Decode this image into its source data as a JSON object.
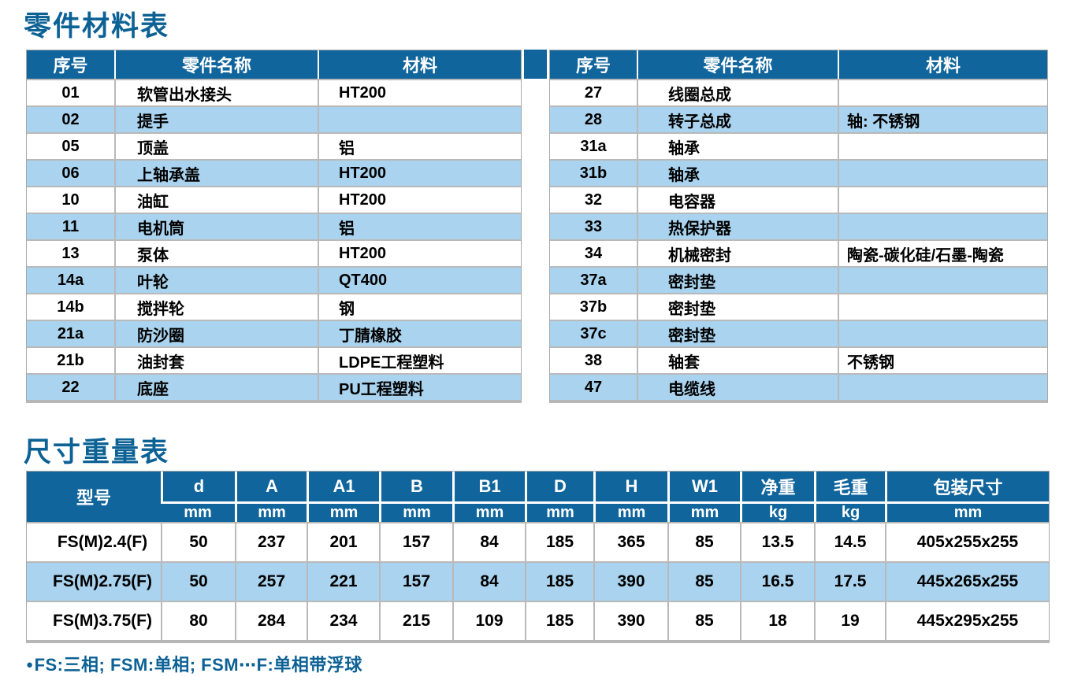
{
  "colors": {
    "header_blue": "#10659c",
    "row_light_blue": "#a9d3ee",
    "border_gray": "#b9b9b9",
    "title_blue": "#0c6195",
    "header_text": "#ffffff",
    "body_text": "#000000"
  },
  "parts_table": {
    "title": "零件材料表",
    "headers": [
      "序号",
      "零件名称",
      "材料"
    ],
    "left_rows": [
      [
        "01",
        "软管出水接头",
        "HT200"
      ],
      [
        "02",
        "提手",
        ""
      ],
      [
        "05",
        "顶盖",
        "铝"
      ],
      [
        "06",
        "上轴承盖",
        "HT200"
      ],
      [
        "10",
        "油缸",
        "HT200"
      ],
      [
        "11",
        "电机筒",
        "铝"
      ],
      [
        "13",
        "泵体",
        "HT200"
      ],
      [
        "14a",
        "叶轮",
        "QT400"
      ],
      [
        "14b",
        "搅拌轮",
        "钢"
      ],
      [
        "21a",
        "防沙圈",
        "丁腈橡胶"
      ],
      [
        "21b",
        "油封套",
        "LDPE工程塑料"
      ],
      [
        "22",
        "底座",
        "PU工程塑料"
      ]
    ],
    "right_rows": [
      [
        "27",
        "线圈总成",
        ""
      ],
      [
        "28",
        "转子总成",
        "轴: 不锈钢"
      ],
      [
        "31a",
        "轴承",
        ""
      ],
      [
        "31b",
        "轴承",
        ""
      ],
      [
        "32",
        "电容器",
        ""
      ],
      [
        "33",
        "热保护器",
        ""
      ],
      [
        "34",
        "机械密封",
        "陶瓷-碳化硅/石墨-陶瓷"
      ],
      [
        "37a",
        "密封垫",
        ""
      ],
      [
        "37b",
        "密封垫",
        ""
      ],
      [
        "37c",
        "密封垫",
        ""
      ],
      [
        "38",
        "轴套",
        "不锈钢"
      ],
      [
        "47",
        "电缆线",
        ""
      ]
    ]
  },
  "dimensions_table": {
    "title": "尺寸重量表",
    "model_header": "型号",
    "columns": [
      {
        "label": "d",
        "unit": "mm"
      },
      {
        "label": "A",
        "unit": "mm"
      },
      {
        "label": "A1",
        "unit": "mm"
      },
      {
        "label": "B",
        "unit": "mm"
      },
      {
        "label": "B1",
        "unit": "mm"
      },
      {
        "label": "D",
        "unit": "mm"
      },
      {
        "label": "H",
        "unit": "mm"
      },
      {
        "label": "W1",
        "unit": "mm"
      },
      {
        "label": "净重",
        "unit": "kg"
      },
      {
        "label": "毛重",
        "unit": "kg"
      },
      {
        "label": "包装尺寸",
        "unit": "mm"
      }
    ],
    "rows": [
      {
        "model": "FS(M)2.4(F)",
        "values": [
          "50",
          "237",
          "201",
          "157",
          "84",
          "185",
          "365",
          "85",
          "13.5",
          "14.5",
          "405x255x255"
        ]
      },
      {
        "model": "FS(M)2.75(F)",
        "values": [
          "50",
          "257",
          "221",
          "157",
          "84",
          "185",
          "390",
          "85",
          "16.5",
          "17.5",
          "445x265x255"
        ]
      },
      {
        "model": "FS(M)3.75(F)",
        "values": [
          "80",
          "284",
          "234",
          "215",
          "109",
          "185",
          "390",
          "85",
          "18",
          "19",
          "445x295x255"
        ]
      }
    ]
  },
  "footnote": {
    "bullet": "●",
    "text": "FS:三相; FSM:单相; FSM⋯F:单相带浮球"
  }
}
